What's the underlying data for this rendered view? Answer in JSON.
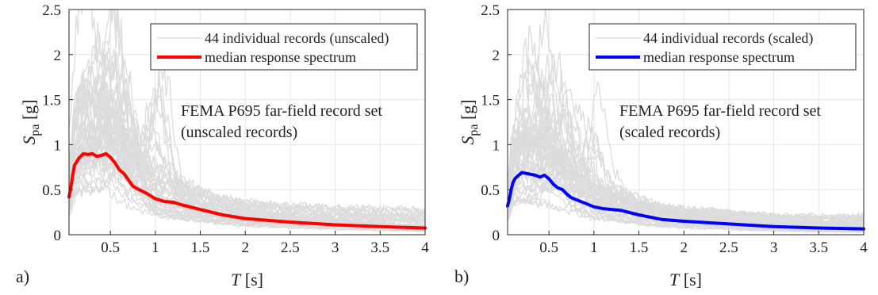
{
  "figure": {
    "panels": [
      {
        "panel_label": "a)",
        "legend": {
          "records_label": "44 individual records (unscaled)",
          "median_label": "median response spectrum"
        },
        "annotation": [
          "FEMA P695 far-field record set",
          "(unscaled records)"
        ],
        "median_color": "#ff0000"
      },
      {
        "panel_label": "b)",
        "legend": {
          "records_label": "44 individual records (scaled)",
          "median_label": "median response spectrum"
        },
        "annotation": [
          "FEMA P695 far-field record set",
          "(scaled records)"
        ],
        "median_color": "#0000ff"
      }
    ]
  },
  "chart_data": [
    {
      "type": "line",
      "ylabel_symbol": "S",
      "ylabel_subscript": "pa",
      "ylabel_unit": "[g]",
      "xlabel_symbol": "T",
      "xlabel_unit": "[s]",
      "xlim": [
        0.04,
        4
      ],
      "ylim": [
        0,
        2.5
      ],
      "xticks": [
        0.5,
        1,
        1.5,
        2,
        2.5,
        3,
        3.5,
        4
      ],
      "yticks": [
        0,
        0.5,
        1,
        1.5,
        2,
        2.5
      ],
      "grid": true,
      "legend_position": "top-right",
      "series": [
        {
          "name": "median response spectrum",
          "color": "#ff0000",
          "x": [
            0.04,
            0.06,
            0.08,
            0.1,
            0.12,
            0.15,
            0.2,
            0.25,
            0.3,
            0.35,
            0.4,
            0.45,
            0.5,
            0.55,
            0.6,
            0.65,
            0.7,
            0.75,
            0.8,
            0.9,
            1.0,
            1.1,
            1.2,
            1.3,
            1.5,
            1.75,
            2.0,
            2.5,
            3.0,
            3.5,
            4.0
          ],
          "y": [
            0.42,
            0.52,
            0.65,
            0.77,
            0.8,
            0.85,
            0.9,
            0.89,
            0.9,
            0.87,
            0.88,
            0.9,
            0.86,
            0.8,
            0.72,
            0.68,
            0.61,
            0.54,
            0.51,
            0.46,
            0.4,
            0.37,
            0.36,
            0.33,
            0.28,
            0.22,
            0.18,
            0.14,
            0.11,
            0.09,
            0.075
          ]
        }
      ]
    },
    {
      "type": "line",
      "ylabel_symbol": "S",
      "ylabel_subscript": "pa",
      "ylabel_unit": "[g]",
      "xlabel_symbol": "T",
      "xlabel_unit": "[s]",
      "xlim": [
        0.04,
        4
      ],
      "ylim": [
        0,
        2.5
      ],
      "xticks": [
        0.5,
        1,
        1.5,
        2,
        2.5,
        3,
        3.5,
        4
      ],
      "yticks": [
        0,
        0.5,
        1,
        1.5,
        2,
        2.5
      ],
      "grid": true,
      "legend_position": "top-right",
      "series": [
        {
          "name": "median response spectrum",
          "color": "#0000ff",
          "x": [
            0.04,
            0.06,
            0.08,
            0.1,
            0.12,
            0.15,
            0.2,
            0.25,
            0.3,
            0.35,
            0.4,
            0.45,
            0.5,
            0.55,
            0.6,
            0.65,
            0.7,
            0.75,
            0.8,
            0.9,
            1.0,
            1.1,
            1.2,
            1.3,
            1.5,
            1.75,
            2.0,
            2.5,
            3.0,
            3.5,
            4.0
          ],
          "y": [
            0.32,
            0.4,
            0.5,
            0.58,
            0.62,
            0.65,
            0.69,
            0.68,
            0.67,
            0.66,
            0.64,
            0.66,
            0.62,
            0.56,
            0.52,
            0.5,
            0.45,
            0.41,
            0.39,
            0.35,
            0.31,
            0.29,
            0.28,
            0.27,
            0.22,
            0.17,
            0.15,
            0.12,
            0.09,
            0.075,
            0.065
          ]
        }
      ]
    }
  ]
}
